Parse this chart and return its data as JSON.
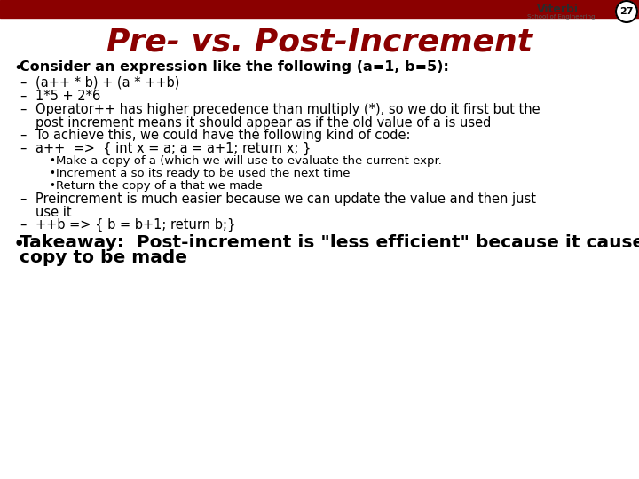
{
  "slide_number": "27",
  "title": "Pre- vs. Post-Increment",
  "title_color": "#8B0000",
  "header_bar_color": "#8B0000",
  "background_color": "#FFFFFF",
  "bullet1": "Consider an expression like the following (a=1, b=5):",
  "dash_items": [
    "(a++ * b) + (a * ++b)",
    "1*5 + 2*6",
    "Operator++ has higher precedence than multiply (*), so we do it first but the\npost increment means it should appear as if the old value of a is used",
    "To achieve this, we could have the following kind of code:",
    "a++  =>  { int x = a; a = a+1; return x; }",
    "Preincrement is much easier because we can update the value and then just\nuse it",
    "++b => { b = b+1; return b;}"
  ],
  "sub_bullets": [
    "Make a copy of a (which we will use to evaluate the current expr.",
    "Increment a so its ready to be used the next time",
    "Return the copy of a that we made"
  ],
  "bullet2_line1": "Takeaway:  Post-increment is \"less efficient\" because it causes a",
  "bullet2_line2": "copy to be made",
  "font_size_title": 26,
  "font_size_bullet": 11.5,
  "font_size_dash": 10.5,
  "font_size_sub": 9.5,
  "font_size_bullet2": 14.5
}
